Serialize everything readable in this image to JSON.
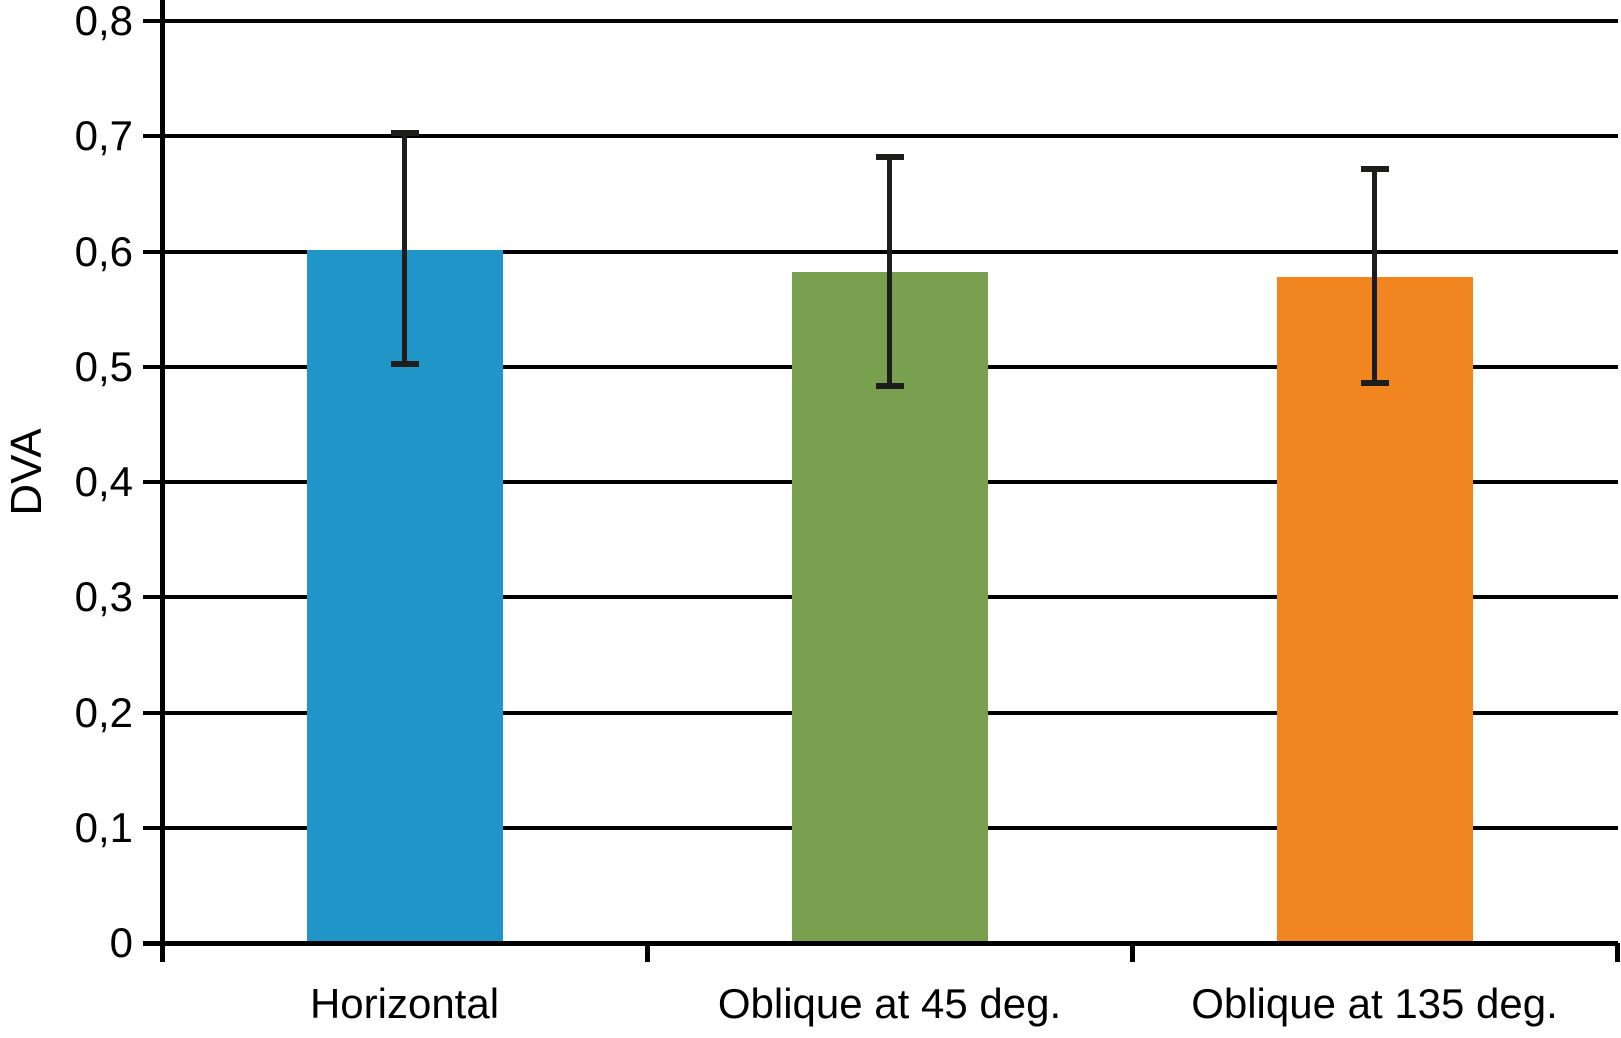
{
  "chart_data": {
    "type": "bar",
    "title": "",
    "xlabel": "",
    "ylabel": "DVA",
    "ylim": [
      0,
      0.8
    ],
    "grid": "horizontal",
    "legend": "none",
    "decimal_separator": ",",
    "categories": [
      "Horizontal",
      "Oblique at 45 deg.",
      "Oblique at 135 deg."
    ],
    "values": [
      0.601,
      0.582,
      0.578
    ],
    "errors_upper": [
      0.703,
      0.682,
      0.672
    ],
    "errors_lower": [
      0.502,
      0.483,
      0.486
    ],
    "bar_colors": [
      "#2096C8",
      "#79A04F",
      "#F1851F"
    ],
    "axis_color": "#000000",
    "error_bar_color": "#1D1D1B",
    "yticks": [
      {
        "v": 0.0,
        "label": "0"
      },
      {
        "v": 0.1,
        "label": "0,1"
      },
      {
        "v": 0.2,
        "label": "0,2"
      },
      {
        "v": 0.3,
        "label": "0,3"
      },
      {
        "v": 0.4,
        "label": "0,4"
      },
      {
        "v": 0.5,
        "label": "0,5"
      },
      {
        "v": 0.6,
        "label": "0,6"
      },
      {
        "v": 0.7,
        "label": "0,7"
      },
      {
        "v": 0.8,
        "label": "0,8"
      }
    ]
  }
}
